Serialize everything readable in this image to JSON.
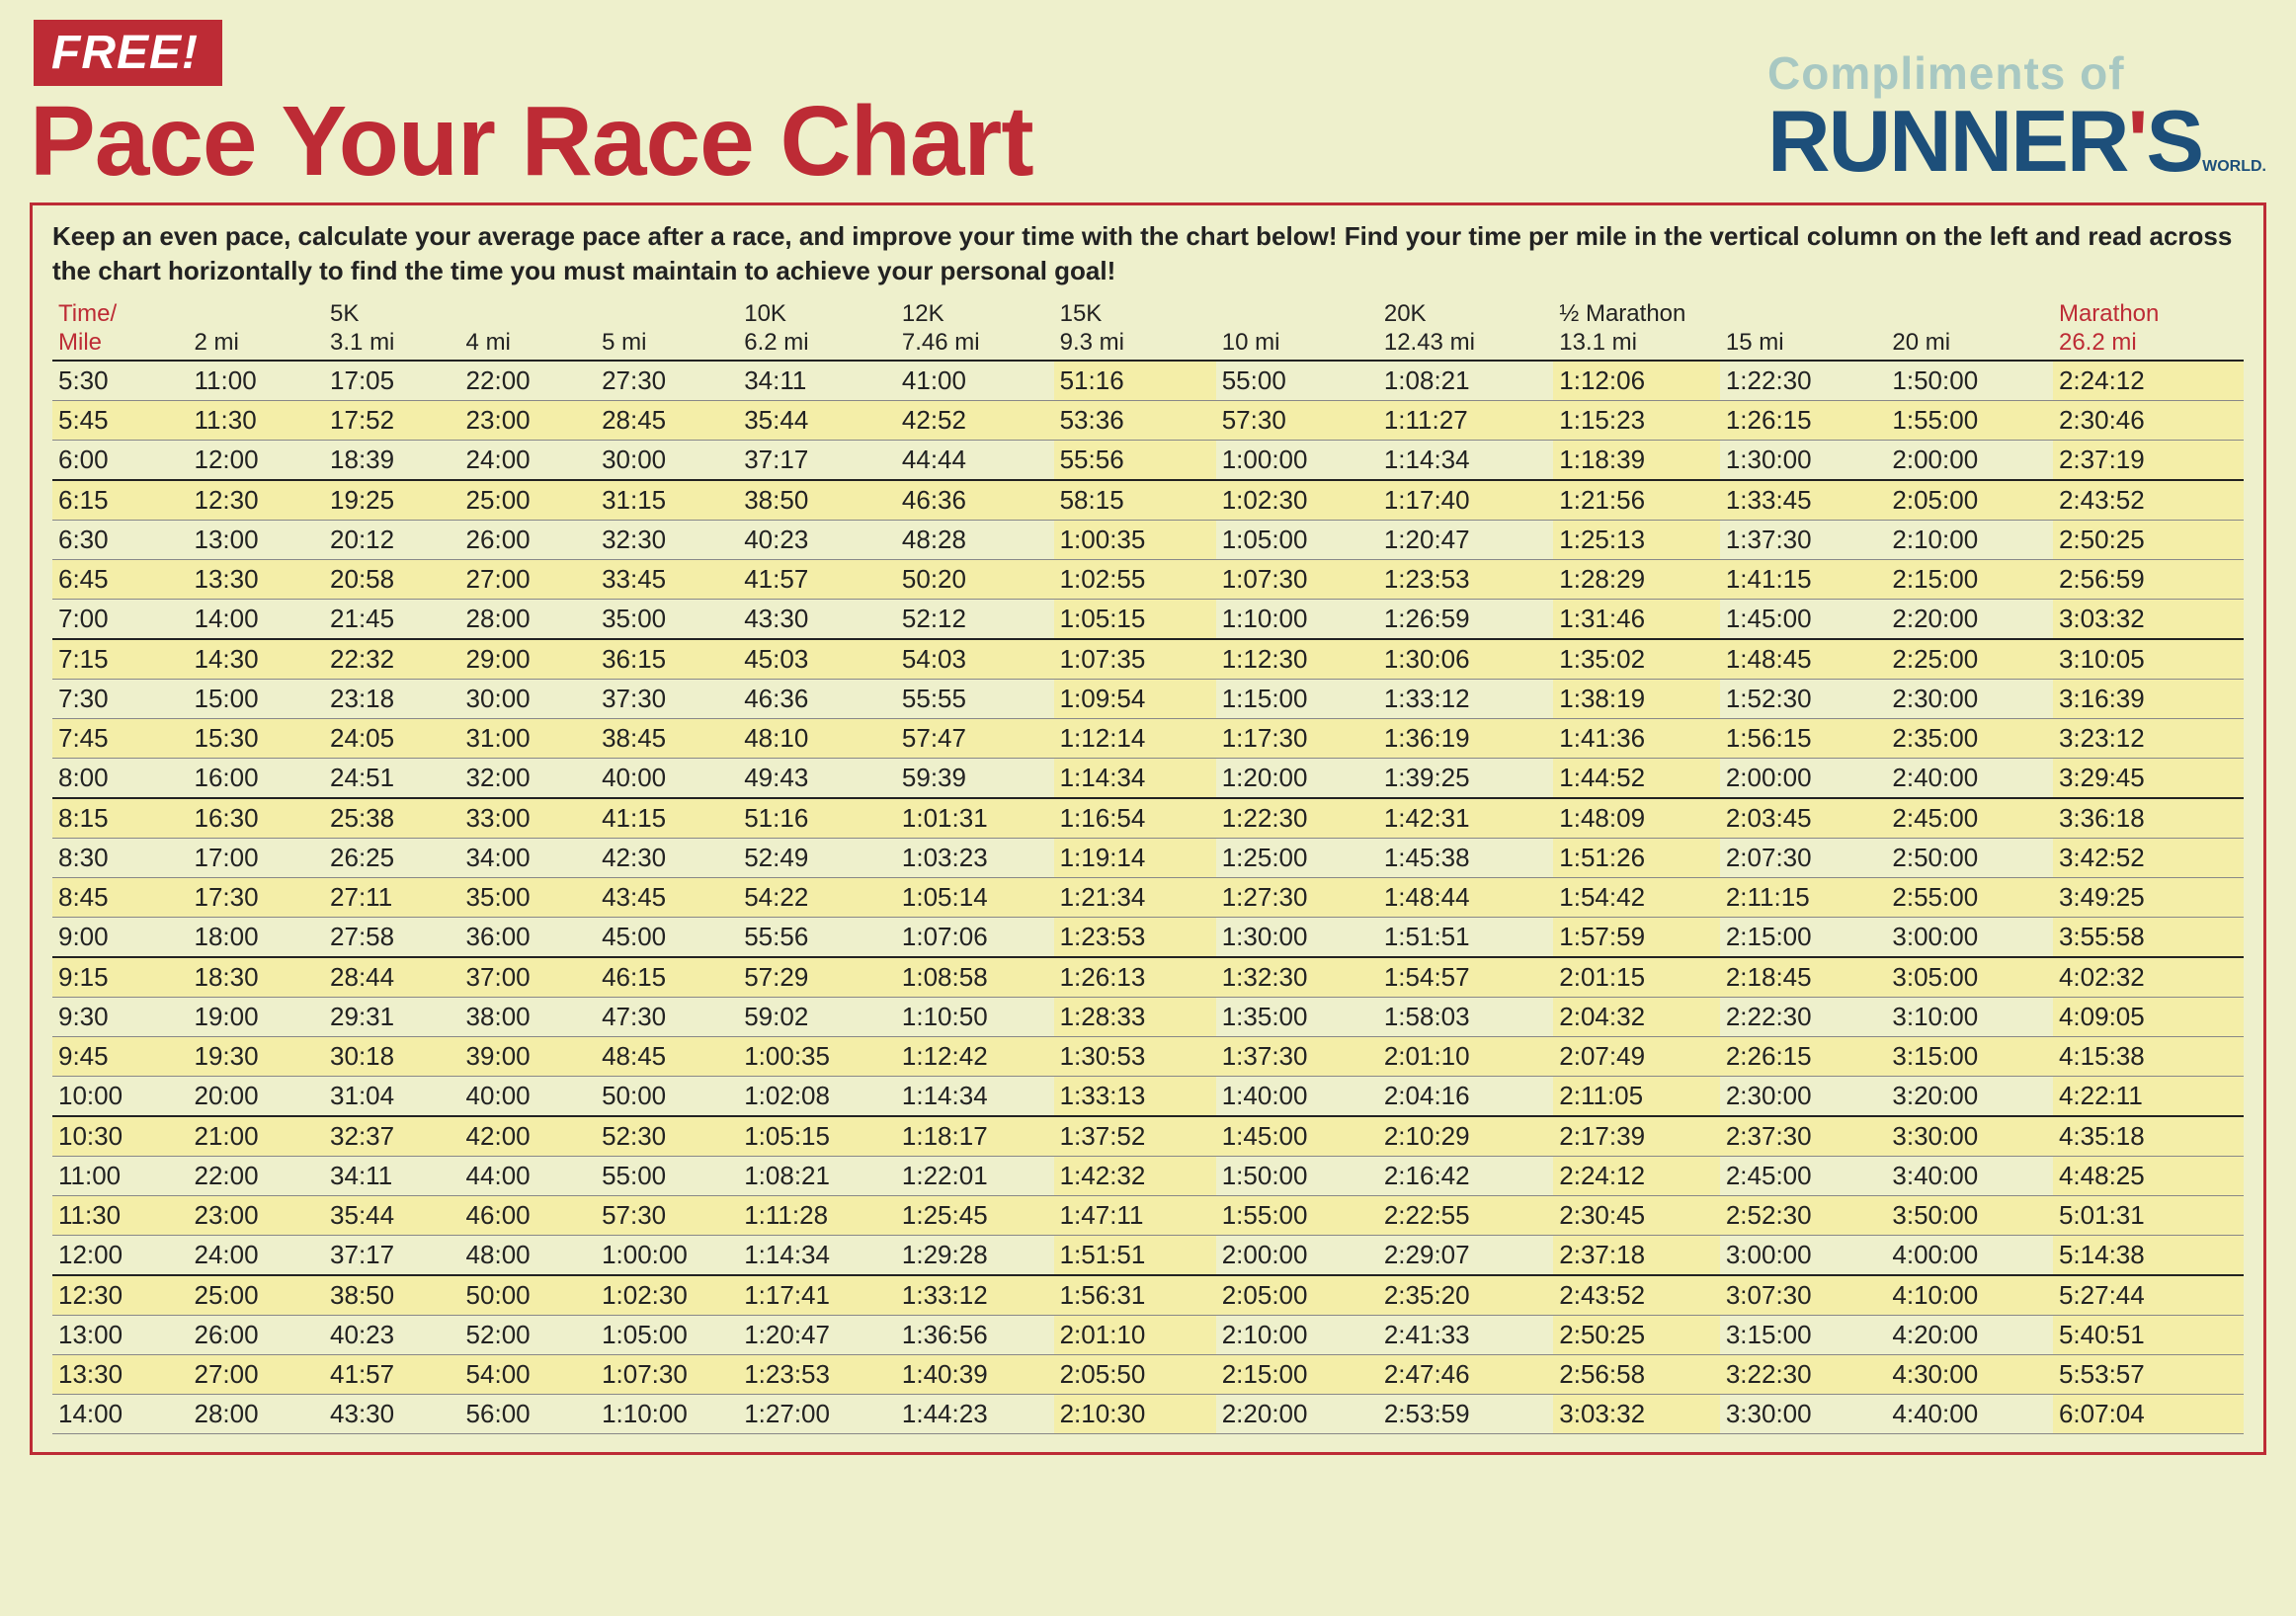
{
  "header": {
    "free_badge": "FREE!",
    "title": "Pace Your Race Chart",
    "compliments": "Compliments of",
    "brand_main": "RUNNER",
    "brand_apostrophe": "'",
    "brand_s": "S",
    "brand_world": "WORLD."
  },
  "instructions": "Keep an even pace, calculate your average pace after a race, and improve your time with the chart below! Find your time per mile in the vertical column on the left and read across the chart horizontally to find the time you must maintain to achieve your personal goal!",
  "colors": {
    "page_bg": "#eef0cc",
    "accent_red": "#bd2b35",
    "brand_blue": "#1d4f7a",
    "compliments_teal": "#a8c8c2",
    "stripe_bg": "#f4eea8",
    "text": "#222222"
  },
  "columns": [
    {
      "top": "Time/",
      "bottom": "Mile",
      "red": true
    },
    {
      "top": "",
      "bottom": "2 mi"
    },
    {
      "top": "5K",
      "bottom": "3.1 mi"
    },
    {
      "top": "",
      "bottom": "4 mi"
    },
    {
      "top": "",
      "bottom": "5 mi"
    },
    {
      "top": "10K",
      "bottom": "6.2 mi"
    },
    {
      "top": "12K",
      "bottom": "7.46 mi"
    },
    {
      "top": "15K",
      "bottom": "9.3 mi"
    },
    {
      "top": "",
      "bottom": "10 mi"
    },
    {
      "top": "20K",
      "bottom": "12.43 mi"
    },
    {
      "top": "½ Marathon",
      "bottom": "13.1 mi"
    },
    {
      "top": "",
      "bottom": "15 mi"
    },
    {
      "top": "",
      "bottom": "20 mi"
    },
    {
      "top": "Marathon",
      "bottom": "26.2 mi",
      "red": true
    }
  ],
  "rows": [
    [
      "5:30",
      "11:00",
      "17:05",
      "22:00",
      "27:30",
      "34:11",
      "41:00",
      "51:16",
      "55:00",
      "1:08:21",
      "1:12:06",
      "1:22:30",
      "1:50:00",
      "2:24:12"
    ],
    [
      "5:45",
      "11:30",
      "17:52",
      "23:00",
      "28:45",
      "35:44",
      "42:52",
      "53:36",
      "57:30",
      "1:11:27",
      "1:15:23",
      "1:26:15",
      "1:55:00",
      "2:30:46"
    ],
    [
      "6:00",
      "12:00",
      "18:39",
      "24:00",
      "30:00",
      "37:17",
      "44:44",
      "55:56",
      "1:00:00",
      "1:14:34",
      "1:18:39",
      "1:30:00",
      "2:00:00",
      "2:37:19"
    ],
    [
      "6:15",
      "12:30",
      "19:25",
      "25:00",
      "31:15",
      "38:50",
      "46:36",
      "58:15",
      "1:02:30",
      "1:17:40",
      "1:21:56",
      "1:33:45",
      "2:05:00",
      "2:43:52"
    ],
    [
      "6:30",
      "13:00",
      "20:12",
      "26:00",
      "32:30",
      "40:23",
      "48:28",
      "1:00:35",
      "1:05:00",
      "1:20:47",
      "1:25:13",
      "1:37:30",
      "2:10:00",
      "2:50:25"
    ],
    [
      "6:45",
      "13:30",
      "20:58",
      "27:00",
      "33:45",
      "41:57",
      "50:20",
      "1:02:55",
      "1:07:30",
      "1:23:53",
      "1:28:29",
      "1:41:15",
      "2:15:00",
      "2:56:59"
    ],
    [
      "7:00",
      "14:00",
      "21:45",
      "28:00",
      "35:00",
      "43:30",
      "52:12",
      "1:05:15",
      "1:10:00",
      "1:26:59",
      "1:31:46",
      "1:45:00",
      "2:20:00",
      "3:03:32"
    ],
    [
      "7:15",
      "14:30",
      "22:32",
      "29:00",
      "36:15",
      "45:03",
      "54:03",
      "1:07:35",
      "1:12:30",
      "1:30:06",
      "1:35:02",
      "1:48:45",
      "2:25:00",
      "3:10:05"
    ],
    [
      "7:30",
      "15:00",
      "23:18",
      "30:00",
      "37:30",
      "46:36",
      "55:55",
      "1:09:54",
      "1:15:00",
      "1:33:12",
      "1:38:19",
      "1:52:30",
      "2:30:00",
      "3:16:39"
    ],
    [
      "7:45",
      "15:30",
      "24:05",
      "31:00",
      "38:45",
      "48:10",
      "57:47",
      "1:12:14",
      "1:17:30",
      "1:36:19",
      "1:41:36",
      "1:56:15",
      "2:35:00",
      "3:23:12"
    ],
    [
      "8:00",
      "16:00",
      "24:51",
      "32:00",
      "40:00",
      "49:43",
      "59:39",
      "1:14:34",
      "1:20:00",
      "1:39:25",
      "1:44:52",
      "2:00:00",
      "2:40:00",
      "3:29:45"
    ],
    [
      "8:15",
      "16:30",
      "25:38",
      "33:00",
      "41:15",
      "51:16",
      "1:01:31",
      "1:16:54",
      "1:22:30",
      "1:42:31",
      "1:48:09",
      "2:03:45",
      "2:45:00",
      "3:36:18"
    ],
    [
      "8:30",
      "17:00",
      "26:25",
      "34:00",
      "42:30",
      "52:49",
      "1:03:23",
      "1:19:14",
      "1:25:00",
      "1:45:38",
      "1:51:26",
      "2:07:30",
      "2:50:00",
      "3:42:52"
    ],
    [
      "8:45",
      "17:30",
      "27:11",
      "35:00",
      "43:45",
      "54:22",
      "1:05:14",
      "1:21:34",
      "1:27:30",
      "1:48:44",
      "1:54:42",
      "2:11:15",
      "2:55:00",
      "3:49:25"
    ],
    [
      "9:00",
      "18:00",
      "27:58",
      "36:00",
      "45:00",
      "55:56",
      "1:07:06",
      "1:23:53",
      "1:30:00",
      "1:51:51",
      "1:57:59",
      "2:15:00",
      "3:00:00",
      "3:55:58"
    ],
    [
      "9:15",
      "18:30",
      "28:44",
      "37:00",
      "46:15",
      "57:29",
      "1:08:58",
      "1:26:13",
      "1:32:30",
      "1:54:57",
      "2:01:15",
      "2:18:45",
      "3:05:00",
      "4:02:32"
    ],
    [
      "9:30",
      "19:00",
      "29:31",
      "38:00",
      "47:30",
      "59:02",
      "1:10:50",
      "1:28:33",
      "1:35:00",
      "1:58:03",
      "2:04:32",
      "2:22:30",
      "3:10:00",
      "4:09:05"
    ],
    [
      "9:45",
      "19:30",
      "30:18",
      "39:00",
      "48:45",
      "1:00:35",
      "1:12:42",
      "1:30:53",
      "1:37:30",
      "2:01:10",
      "2:07:49",
      "2:26:15",
      "3:15:00",
      "4:15:38"
    ],
    [
      "10:00",
      "20:00",
      "31:04",
      "40:00",
      "50:00",
      "1:02:08",
      "1:14:34",
      "1:33:13",
      "1:40:00",
      "2:04:16",
      "2:11:05",
      "2:30:00",
      "3:20:00",
      "4:22:11"
    ],
    [
      "10:30",
      "21:00",
      "32:37",
      "42:00",
      "52:30",
      "1:05:15",
      "1:18:17",
      "1:37:52",
      "1:45:00",
      "2:10:29",
      "2:17:39",
      "2:37:30",
      "3:30:00",
      "4:35:18"
    ],
    [
      "11:00",
      "22:00",
      "34:11",
      "44:00",
      "55:00",
      "1:08:21",
      "1:22:01",
      "1:42:32",
      "1:50:00",
      "2:16:42",
      "2:24:12",
      "2:45:00",
      "3:40:00",
      "4:48:25"
    ],
    [
      "11:30",
      "23:00",
      "35:44",
      "46:00",
      "57:30",
      "1:11:28",
      "1:25:45",
      "1:47:11",
      "1:55:00",
      "2:22:55",
      "2:30:45",
      "2:52:30",
      "3:50:00",
      "5:01:31"
    ],
    [
      "12:00",
      "24:00",
      "37:17",
      "48:00",
      "1:00:00",
      "1:14:34",
      "1:29:28",
      "1:51:51",
      "2:00:00",
      "2:29:07",
      "2:37:18",
      "3:00:00",
      "4:00:00",
      "5:14:38"
    ],
    [
      "12:30",
      "25:00",
      "38:50",
      "50:00",
      "1:02:30",
      "1:17:41",
      "1:33:12",
      "1:56:31",
      "2:05:00",
      "2:35:20",
      "2:43:52",
      "3:07:30",
      "4:10:00",
      "5:27:44"
    ],
    [
      "13:00",
      "26:00",
      "40:23",
      "52:00",
      "1:05:00",
      "1:20:47",
      "1:36:56",
      "2:01:10",
      "2:10:00",
      "2:41:33",
      "2:50:25",
      "3:15:00",
      "4:20:00",
      "5:40:51"
    ],
    [
      "13:30",
      "27:00",
      "41:57",
      "54:00",
      "1:07:30",
      "1:23:53",
      "1:40:39",
      "2:05:50",
      "2:15:00",
      "2:47:46",
      "2:56:58",
      "3:22:30",
      "4:30:00",
      "5:53:57"
    ],
    [
      "14:00",
      "28:00",
      "43:30",
      "56:00",
      "1:10:00",
      "1:27:00",
      "1:44:23",
      "2:10:30",
      "2:20:00",
      "2:53:59",
      "3:03:32",
      "3:30:00",
      "4:40:00",
      "6:07:04"
    ]
  ],
  "stripe_pattern": "alternate_yellow",
  "group_end_indices": [
    2,
    6,
    10,
    14,
    18,
    22
  ],
  "highlighted_cells": [
    {
      "row": 0,
      "col": 7
    },
    {
      "row": 0,
      "col": 10
    },
    {
      "row": 0,
      "col": 13
    },
    {
      "row": 2,
      "col": 7
    },
    {
      "row": 2,
      "col": 10
    },
    {
      "row": 2,
      "col": 13
    },
    {
      "row": 4,
      "col": 7
    },
    {
      "row": 4,
      "col": 10
    },
    {
      "row": 4,
      "col": 13
    },
    {
      "row": 6,
      "col": 7
    },
    {
      "row": 6,
      "col": 10
    },
    {
      "row": 6,
      "col": 13
    },
    {
      "row": 8,
      "col": 7
    },
    {
      "row": 8,
      "col": 10
    },
    {
      "row": 8,
      "col": 13
    },
    {
      "row": 10,
      "col": 7
    },
    {
      "row": 10,
      "col": 10
    },
    {
      "row": 10,
      "col": 13
    },
    {
      "row": 12,
      "col": 7
    },
    {
      "row": 12,
      "col": 10
    },
    {
      "row": 12,
      "col": 13
    },
    {
      "row": 14,
      "col": 7
    },
    {
      "row": 14,
      "col": 10
    },
    {
      "row": 14,
      "col": 13
    },
    {
      "row": 16,
      "col": 7
    },
    {
      "row": 16,
      "col": 10
    },
    {
      "row": 16,
      "col": 13
    },
    {
      "row": 18,
      "col": 7
    },
    {
      "row": 18,
      "col": 10
    },
    {
      "row": 18,
      "col": 13
    },
    {
      "row": 20,
      "col": 7
    },
    {
      "row": 20,
      "col": 10
    },
    {
      "row": 20,
      "col": 13
    },
    {
      "row": 22,
      "col": 7
    },
    {
      "row": 22,
      "col": 10
    },
    {
      "row": 22,
      "col": 13
    },
    {
      "row": 24,
      "col": 7
    },
    {
      "row": 24,
      "col": 10
    },
    {
      "row": 24,
      "col": 13
    },
    {
      "row": 26,
      "col": 7
    },
    {
      "row": 26,
      "col": 10
    },
    {
      "row": 26,
      "col": 13
    }
  ]
}
